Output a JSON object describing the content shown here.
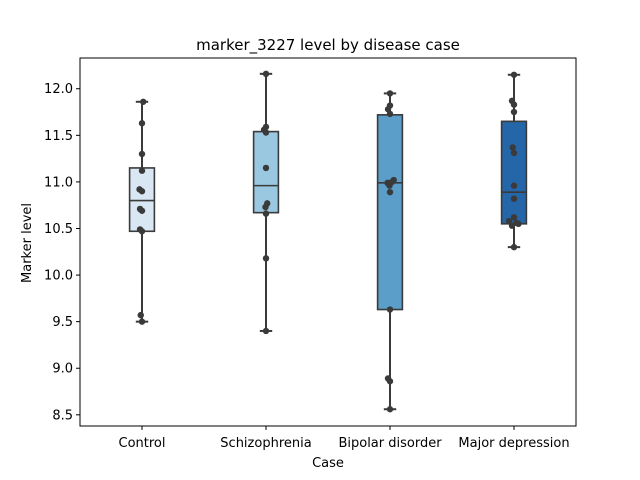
{
  "chart_data": {
    "type": "box",
    "title": "marker_3227 level by disease case",
    "xlabel": "Case",
    "ylabel": "Marker level",
    "ylim": [
      8.38,
      12.33
    ],
    "yticks": [
      8.5,
      9.0,
      9.5,
      10.0,
      10.5,
      11.0,
      11.5,
      12.0
    ],
    "ytick_labels": [
      "8.5",
      "9.0",
      "9.5",
      "10.0",
      "10.5",
      "11.0",
      "11.5",
      "12.0"
    ],
    "categories": [
      "Control",
      "Schizophrenia",
      "Bipolar disorder",
      "Major depression"
    ],
    "colors": [
      "#d9e7f5",
      "#9ac8e0",
      "#5a9ec9",
      "#2566a8"
    ],
    "grid": false,
    "boxes": [
      {
        "category": "Control",
        "whisker_low": 9.5,
        "q1": 10.47,
        "median": 10.8,
        "q3": 11.15,
        "whisker_high": 11.86
      },
      {
        "category": "Schizophrenia",
        "whisker_low": 9.4,
        "q1": 10.67,
        "median": 10.96,
        "q3": 11.54,
        "whisker_high": 12.16
      },
      {
        "category": "Bipolar disorder",
        "whisker_low": 8.56,
        "q1": 9.63,
        "median": 10.99,
        "q3": 11.72,
        "whisker_high": 11.95
      },
      {
        "category": "Major depression",
        "whisker_low": 10.3,
        "q1": 10.55,
        "median": 10.89,
        "q3": 11.65,
        "whisker_high": 12.15
      }
    ],
    "points": [
      {
        "category": "Control",
        "values": [
          11.86,
          11.63,
          11.3,
          11.12,
          10.92,
          10.9,
          10.71,
          10.69,
          10.49,
          10.47,
          9.57,
          9.5
        ],
        "jitter": [
          0.05,
          0.0,
          0.0,
          0.0,
          -0.1,
          0.0,
          -0.08,
          0.0,
          -0.08,
          0.0,
          -0.05,
          0.0
        ]
      },
      {
        "category": "Schizophrenia",
        "values": [
          12.16,
          11.59,
          11.56,
          11.53,
          11.15,
          10.77,
          10.73,
          10.66,
          10.18,
          9.4
        ],
        "jitter": [
          0.0,
          0.0,
          -0.08,
          0.0,
          0.0,
          0.05,
          -0.02,
          0.0,
          0.0,
          0.0
        ]
      },
      {
        "category": "Bipolar disorder",
        "values": [
          11.95,
          11.82,
          11.78,
          11.73,
          11.02,
          11.0,
          10.99,
          10.96,
          10.89,
          9.63,
          8.89,
          8.86,
          8.56
        ],
        "jitter": [
          0.0,
          0.0,
          -0.08,
          0.0,
          0.15,
          0.08,
          -0.1,
          -0.02,
          0.0,
          0.0,
          -0.08,
          0.0,
          0.0
        ]
      },
      {
        "category": "Major depression",
        "values": [
          12.15,
          11.87,
          11.83,
          11.75,
          11.37,
          11.31,
          10.96,
          10.82,
          10.62,
          10.58,
          10.56,
          10.55,
          10.53,
          10.3
        ],
        "jitter": [
          0.0,
          -0.08,
          0.0,
          0.0,
          -0.05,
          0.0,
          0.0,
          0.0,
          0.0,
          -0.2,
          0.1,
          0.18,
          -0.08,
          0.0
        ]
      }
    ]
  }
}
